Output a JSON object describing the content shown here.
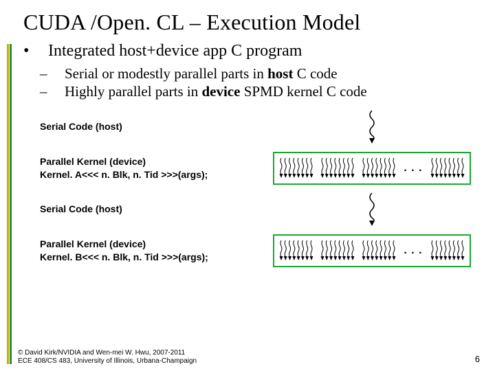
{
  "colors": {
    "accent1": "#c0b000",
    "accent2": "#2a8a3a",
    "kernel_border": "#17a82e",
    "squiggle": "#000000"
  },
  "title": "CUDA /Open. CL – Execution Model",
  "bullets": {
    "l1": "Integrated host+device app C program",
    "l2a_pre": "Serial or modestly parallel parts in ",
    "l2a_b": "host",
    "l2a_post": " C code",
    "l2b_pre": "Highly parallel parts in ",
    "l2b_b": "device",
    "l2b_post": " SPMD kernel C code"
  },
  "stages": {
    "s1_label": "Serial Code (host)",
    "s2_label": "Parallel Kernel (device)",
    "s2_call": "Kernel. A<<< n. Blk, n. Tid >>>(args);",
    "s3_label": "Serial Code (host)",
    "s4_label": "Parallel Kernel (device)",
    "s4_call": "Kernel. B<<< n. Blk, n. Tid >>>(args);",
    "ellipsis": ". . ."
  },
  "thread_block": {
    "arrows_per_block": 8,
    "arrow_color": "#000000"
  },
  "footer": {
    "line1": "© David Kirk/NVIDIA and Wen-mei W. Hwu, 2007-2011",
    "line2": "ECE 408/CS 483, University of Illinois, Urbana-Champaign"
  },
  "page_number": "6"
}
